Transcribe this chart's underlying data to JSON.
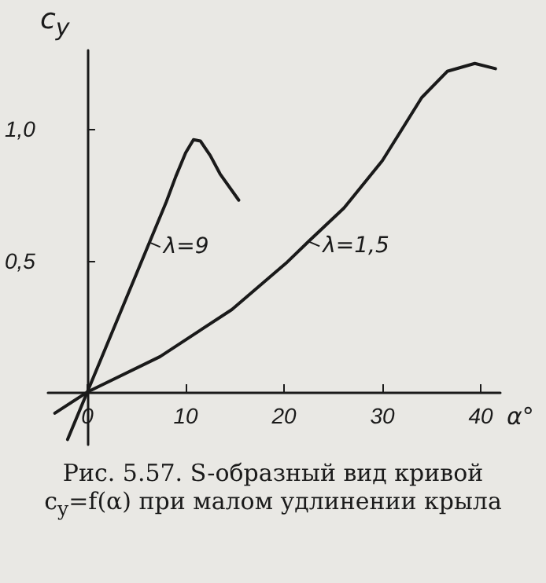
{
  "chart_data": {
    "type": "line",
    "title": "Рис. 5.57. S-образный вид кривой c$_{y}$=f(α) при малом удлинении крыла",
    "xlabel": "α°",
    "ylabel": "c$_{y}$",
    "xlim": [
      -4,
      42
    ],
    "ylim": [
      -0.2,
      1.3
    ],
    "xticks": [
      0,
      10,
      20,
      30,
      40
    ],
    "yticks": [
      {
        "value": 0.5,
        "label": "0,5"
      },
      {
        "value": 1.0,
        "label": "1,0"
      }
    ],
    "grid": false,
    "marker": "none",
    "line_style": "solid",
    "series": [
      {
        "color": "#1a1a1a",
        "x": [
          -2,
          0,
          2,
          4,
          6,
          8,
          9,
          10,
          10.8,
          11.5,
          12.5,
          13.5,
          15.4
        ],
        "values": [
          -0.18,
          0,
          0.18,
          0.36,
          0.54,
          0.72,
          0.82,
          0.91,
          0.96,
          0.955,
          0.9,
          0.83,
          0.73
        ]
      },
      {
        "color": "#1a1a1a",
        "x": [
          -3.3,
          0,
          7.4,
          14.7,
          20.2,
          22.5,
          26.1,
          30,
          34,
          36.6,
          39.4,
          41.5
        ],
        "values": [
          -0.08,
          0,
          0.135,
          0.314,
          0.49,
          0.573,
          0.7,
          0.88,
          1.12,
          1.22,
          1.25,
          1.23
        ]
      }
    ],
    "annotations": [
      {
        "text": "λ=9",
        "x": 6.3,
        "y": 0.57
      },
      {
        "text": "λ=1,5",
        "x": 22.5,
        "y": 0.573
      }
    ]
  }
}
